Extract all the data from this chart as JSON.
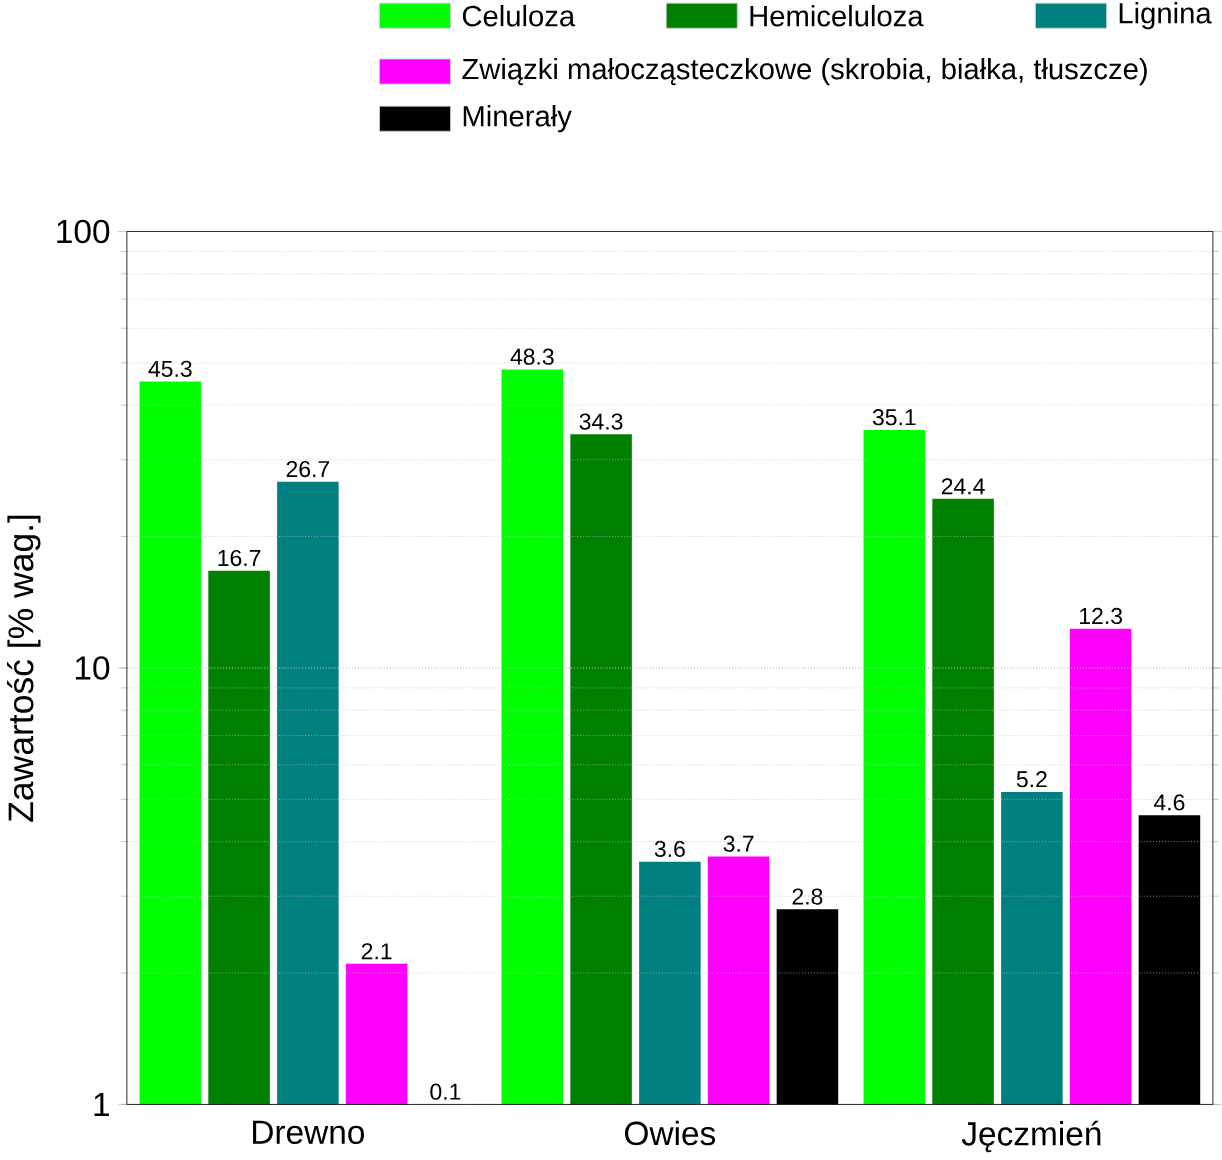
{
  "chart_data": {
    "type": "bar",
    "ylabel": "Zawartość [% wag.]",
    "categories": [
      "Drewno",
      "Owies",
      "Jęczmień"
    ],
    "log": "y",
    "ylim": [
      1,
      100
    ],
    "yticks": [
      1,
      10,
      100
    ],
    "grid": "y",
    "legend": "top",
    "series": [
      {
        "name": "Celuloza",
        "color": "#00ff00",
        "values": [
          45.3,
          48.3,
          35.1
        ],
        "value_labels": [
          "45.3",
          "48.3",
          "35.1"
        ]
      },
      {
        "name": "Hemiceluloza",
        "color": "#008000",
        "values": [
          16.7,
          34.3,
          24.4
        ],
        "value_labels": [
          "16.7",
          "34.3",
          "24.4"
        ]
      },
      {
        "name": "Lignina",
        "color": "#008080",
        "values": [
          26.7,
          3.6,
          5.2
        ],
        "value_labels": [
          "26.7",
          "3.6",
          "5.2"
        ]
      },
      {
        "name": "Związki małocząsteczkowe (skrobia, białka, tłuszcze)",
        "color": "#ff00ff",
        "values": [
          2.1,
          3.7,
          12.3
        ],
        "value_labels": [
          "2.1",
          "3.7",
          "12.3"
        ]
      },
      {
        "name": "Minerały",
        "color": "#000000",
        "values": [
          null,
          2.8,
          4.6
        ],
        "value_labels": [
          "0.1",
          "2.8",
          "4.6"
        ]
      }
    ]
  }
}
